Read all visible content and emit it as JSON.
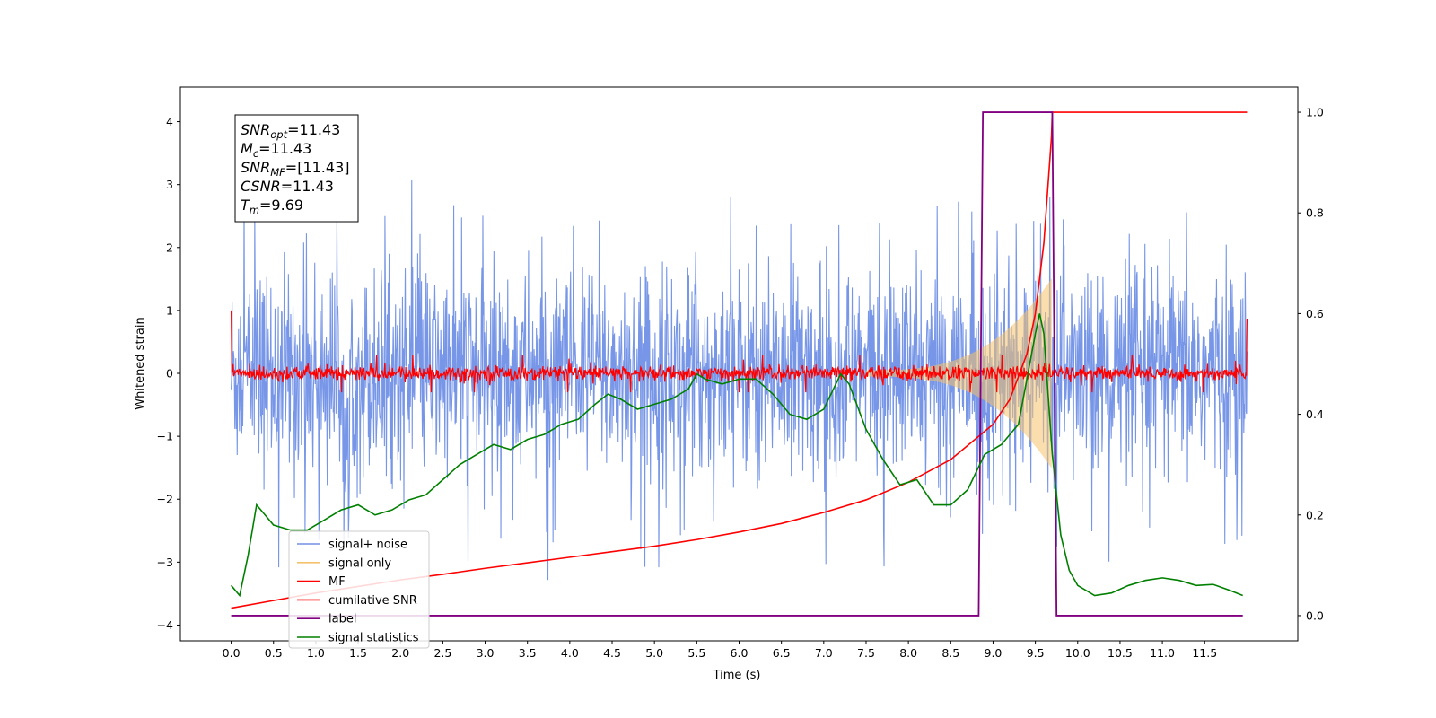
{
  "chart_data": {
    "type": "line",
    "xlabel": "Time (s)",
    "ylabel": "Whitened strain",
    "xlim": [
      -0.6,
      12.6
    ],
    "ylim": [
      -4.25,
      4.55
    ],
    "ylim_right": [
      -0.05,
      1.05
    ],
    "x_ticks": [
      "0.0",
      "0.5",
      "1.0",
      "1.5",
      "2.0",
      "2.5",
      "3.0",
      "3.5",
      "4.0",
      "4.5",
      "5.0",
      "5.5",
      "6.0",
      "6.5",
      "7.0",
      "7.5",
      "8.0",
      "8.5",
      "9.0",
      "9.5",
      "10.0",
      "10.5",
      "11.0",
      "11.5"
    ],
    "y_ticks_left": [
      "4",
      "3",
      "2",
      "1",
      "0",
      "−1",
      "−2",
      "−3",
      "−4"
    ],
    "y_ticks_right": [
      "1.0",
      "0.8",
      "0.6",
      "0.4",
      "0.2",
      "0.0"
    ],
    "grid": false,
    "legend": {
      "placement": "lower-left",
      "entries": [
        {
          "label": "signal+ noise",
          "color": "#7090e6"
        },
        {
          "label": "signal only",
          "color": "#f5c26b"
        },
        {
          "label": "MF",
          "color": "#ff0000"
        },
        {
          "label": "cumilative SNR",
          "color": "#ff0000"
        },
        {
          "label": "label",
          "color": "#800080"
        },
        {
          "label": "signal statistics",
          "color": "#008000"
        }
      ]
    },
    "annotation": {
      "lines": [
        {
          "base": "SNR",
          "sub": "opt",
          "value": "=11.43"
        },
        {
          "base": "M",
          "sub": "c",
          "value": "=11.43"
        },
        {
          "base": "SNR",
          "sub": "MF",
          "value": "=[11.43]"
        },
        {
          "base": "CSNR",
          "sub": "",
          "value": "=11.43"
        },
        {
          "base": "T",
          "sub": "m",
          "value": "=9.69"
        }
      ]
    },
    "series": [
      {
        "name": "signal+ noise",
        "axis": "left",
        "style": "noise",
        "x_range": [
          0.0,
          12.0
        ],
        "amplitude_p95": 1.6,
        "peak": 3.1
      },
      {
        "name": "signal only",
        "axis": "left",
        "style": "chirp",
        "x_range": [
          7.5,
          9.69
        ],
        "amplitude_start": 0.05,
        "amplitude_end": 1.5
      },
      {
        "name": "MF",
        "axis": "left",
        "style": "noise",
        "x_range": [
          0.0,
          12.0
        ],
        "amplitude_p95": 0.12,
        "peak": 0.3,
        "start_value": 1.0,
        "end_value": 0.87
      },
      {
        "name": "cumilative SNR",
        "axis": "right",
        "x": [
          0.0,
          0.5,
          1.0,
          1.5,
          2.0,
          2.5,
          3.0,
          3.5,
          4.0,
          4.5,
          5.0,
          5.5,
          6.0,
          6.5,
          7.0,
          7.5,
          8.0,
          8.5,
          9.0,
          9.2,
          9.4,
          9.5,
          9.6,
          9.69,
          9.7,
          12.0
        ],
        "y": [
          0.015,
          0.03,
          0.045,
          0.058,
          0.071,
          0.082,
          0.094,
          0.105,
          0.116,
          0.127,
          0.138,
          0.151,
          0.166,
          0.183,
          0.205,
          0.23,
          0.265,
          0.31,
          0.38,
          0.43,
          0.52,
          0.6,
          0.74,
          0.95,
          1.0,
          1.0
        ]
      },
      {
        "name": "label",
        "axis": "right",
        "x": [
          0.0,
          8.83,
          8.88,
          9.7,
          9.75,
          11.95
        ],
        "y": [
          0.0,
          0.0,
          1.0,
          1.0,
          0.0,
          0.0
        ]
      },
      {
        "name": "signal statistics",
        "axis": "right",
        "x": [
          0.0,
          0.1,
          0.2,
          0.3,
          0.4,
          0.5,
          0.7,
          0.9,
          1.1,
          1.3,
          1.5,
          1.7,
          1.9,
          2.1,
          2.3,
          2.5,
          2.7,
          2.9,
          3.1,
          3.3,
          3.5,
          3.7,
          3.9,
          4.1,
          4.3,
          4.45,
          4.6,
          4.8,
          5.0,
          5.2,
          5.4,
          5.5,
          5.6,
          5.8,
          6.0,
          6.2,
          6.4,
          6.6,
          6.8,
          7.0,
          7.2,
          7.3,
          7.5,
          7.7,
          7.9,
          8.1,
          8.3,
          8.5,
          8.7,
          8.9,
          9.1,
          9.3,
          9.5,
          9.55,
          9.6,
          9.7,
          9.8,
          9.9,
          10.0,
          10.2,
          10.4,
          10.6,
          10.8,
          11.0,
          11.2,
          11.4,
          11.6,
          11.8,
          11.95
        ],
        "y": [
          0.06,
          0.04,
          0.12,
          0.22,
          0.2,
          0.18,
          0.17,
          0.17,
          0.19,
          0.21,
          0.22,
          0.2,
          0.21,
          0.23,
          0.24,
          0.27,
          0.3,
          0.32,
          0.34,
          0.33,
          0.35,
          0.36,
          0.38,
          0.39,
          0.42,
          0.44,
          0.43,
          0.41,
          0.42,
          0.43,
          0.45,
          0.48,
          0.47,
          0.46,
          0.47,
          0.47,
          0.44,
          0.4,
          0.39,
          0.41,
          0.48,
          0.46,
          0.37,
          0.31,
          0.26,
          0.27,
          0.22,
          0.22,
          0.25,
          0.32,
          0.34,
          0.38,
          0.56,
          0.6,
          0.56,
          0.32,
          0.16,
          0.09,
          0.06,
          0.04,
          0.045,
          0.06,
          0.07,
          0.075,
          0.07,
          0.06,
          0.062,
          0.05,
          0.04
        ]
      }
    ]
  }
}
